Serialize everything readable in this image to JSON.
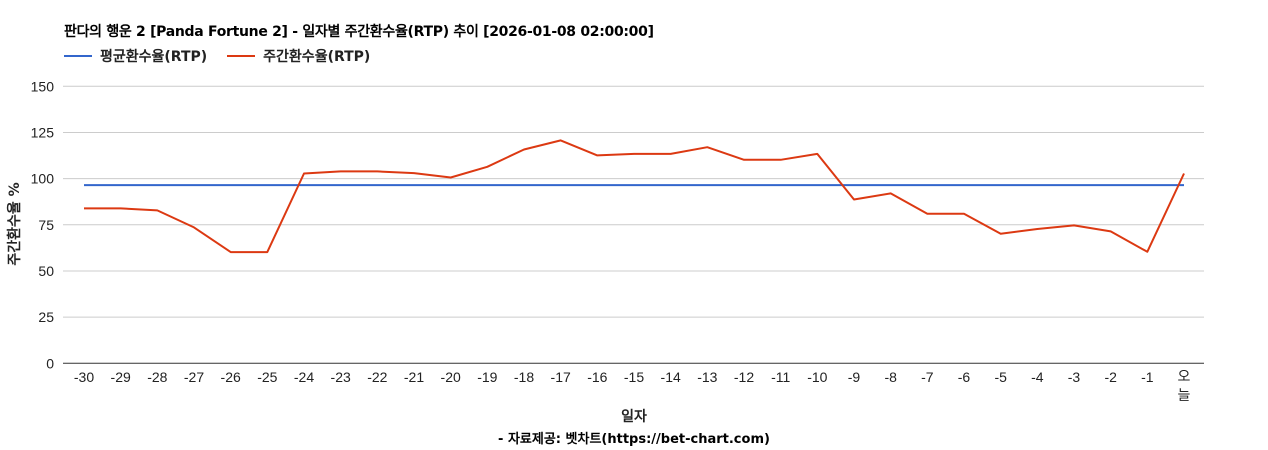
{
  "chart_data": {
    "type": "line",
    "title": "판다의 행운 2 [Panda Fortune 2] - 일자별 주간환수율(RTP) 추이 [2026-01-08 02:00:00]",
    "xlabel": "일자",
    "ylabel": "주간환수율 %",
    "source": "- 자료제공: 벳차트(https://bet-chart.com)",
    "ylim": [
      0,
      150
    ],
    "yticks": [
      0,
      25,
      50,
      75,
      100,
      125,
      150
    ],
    "grid": true,
    "legend_position": "top",
    "categories": [
      "-30",
      "-29",
      "-28",
      "-27",
      "-26",
      "-25",
      "-24",
      "-23",
      "-22",
      "-21",
      "-20",
      "-19",
      "-18",
      "-17",
      "-16",
      "-15",
      "-14",
      "-13",
      "-12",
      "-11",
      "-10",
      "-9",
      "-8",
      "-7",
      "-6",
      "-5",
      "-4",
      "-3",
      "-2",
      "-1",
      "오늘"
    ],
    "series": [
      {
        "name": "평균환수율(RTP)",
        "color": "#3366cc",
        "values": [
          96.5,
          96.5,
          96.5,
          96.5,
          96.5,
          96.5,
          96.5,
          96.5,
          96.5,
          96.5,
          96.5,
          96.5,
          96.5,
          96.5,
          96.5,
          96.5,
          96.5,
          96.5,
          96.5,
          96.5,
          96.5,
          96.5,
          96.5,
          96.5,
          96.5,
          96.5,
          96.5,
          96.5,
          96.5,
          96.5,
          96.5
        ]
      },
      {
        "name": "주간환수율(RTP)",
        "color": "#dc3912",
        "values": [
          83.9,
          83.9,
          82.8,
          73.6,
          60.2,
          60.2,
          102.8,
          103.9,
          103.9,
          103.0,
          100.6,
          106.4,
          115.8,
          120.7,
          112.6,
          113.4,
          113.4,
          117.0,
          110.2,
          110.2,
          113.4,
          88.7,
          92.0,
          81.0,
          81.0,
          70.1,
          72.7,
          74.7,
          71.4,
          60.4,
          102.8
        ]
      }
    ]
  }
}
